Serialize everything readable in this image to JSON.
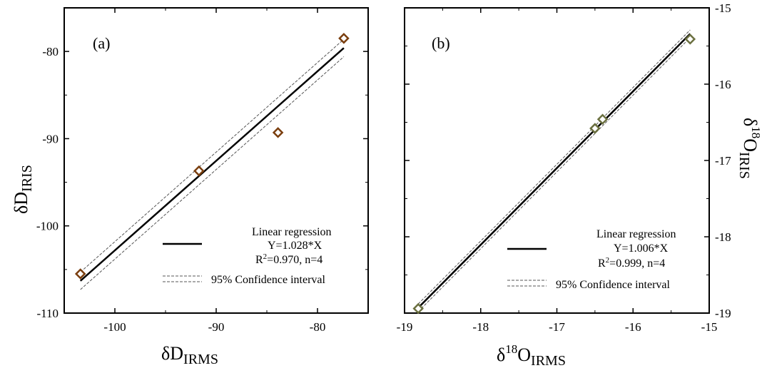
{
  "chart_data": [
    {
      "type": "scatter",
      "panel_label": "(a)",
      "xlabel_main": "δD",
      "xlabel_sub": "IRMS",
      "ylabel_main": "δD",
      "ylabel_sub": "IRIS",
      "xlim": [
        -105,
        -75
      ],
      "ylim": [
        -110,
        -75
      ],
      "xticks": [
        -100,
        -90,
        -80
      ],
      "xtick_labels": [
        "-100",
        "-90",
        "-80"
      ],
      "yticks": [
        -110,
        -100,
        -90,
        -80
      ],
      "ytick_labels": [
        "-110",
        "-100",
        "-90",
        "-80"
      ],
      "points": [
        {
          "x": -103.4,
          "y": -105.5
        },
        {
          "x": -91.7,
          "y": -93.7
        },
        {
          "x": -83.9,
          "y": -89.3
        },
        {
          "x": -77.4,
          "y": -78.5
        }
      ],
      "regression_line": {
        "x": [
          -103.4,
          -77.4
        ],
        "y": [
          -106.3,
          -79.6
        ]
      },
      "ci_upper": {
        "x": [
          -103.4,
          -77.4
        ],
        "y": [
          -105.3,
          -78.6
        ]
      },
      "ci_lower": {
        "x": [
          -103.4,
          -77.4
        ],
        "y": [
          -107.3,
          -80.6
        ]
      },
      "legend": {
        "line_label": "Linear regression",
        "equation": "Y=1.028*X",
        "stats_prefix": "R",
        "stats_sup": "2",
        "stats_suffix": "=0.970, n=4",
        "ci_label": "95% Confidence interval"
      },
      "marker_color": "#7a3e0e",
      "grid": false
    },
    {
      "type": "scatter",
      "panel_label": "(b)",
      "xlabel_pre": "δ",
      "xlabel_sup": "18",
      "xlabel_main": "O",
      "xlabel_sub": "IRMS",
      "ylabel_pre": "δ",
      "ylabel_sup": "18",
      "ylabel_main": "O",
      "ylabel_sub": "IRIS",
      "xlim": [
        -19,
        -15
      ],
      "ylim": [
        -19,
        -15
      ],
      "xticks": [
        -19,
        -18,
        -17,
        -16,
        -15
      ],
      "xtick_labels": [
        "-19",
        "-18",
        "-17",
        "-16",
        "-15"
      ],
      "yticks": [
        -19,
        -18,
        -17,
        -16,
        -15
      ],
      "ytick_labels": [
        "-19",
        "-18",
        "-17",
        "-16",
        "-15"
      ],
      "y_axis_side": "right",
      "points": [
        {
          "x": -18.82,
          "y": -18.94
        },
        {
          "x": -16.5,
          "y": -16.58
        },
        {
          "x": -16.4,
          "y": -16.46
        },
        {
          "x": -15.25,
          "y": -15.41
        }
      ],
      "regression_line": {
        "x": [
          -18.82,
          -15.25
        ],
        "y": [
          -18.93,
          -15.34
        ]
      },
      "ci_upper": {
        "x": [
          -18.82,
          -15.25
        ],
        "y": [
          -18.88,
          -15.29
        ]
      },
      "ci_lower": {
        "x": [
          -18.82,
          -15.25
        ],
        "y": [
          -18.98,
          -15.39
        ]
      },
      "legend": {
        "line_label": "Linear regression",
        "equation": "Y=1.006*X",
        "stats_prefix": "R",
        "stats_sup": "2",
        "stats_suffix": "=0.999, n=4",
        "ci_label": "95% Confidence interval"
      },
      "marker_color": "#6b7040",
      "grid": false
    }
  ]
}
